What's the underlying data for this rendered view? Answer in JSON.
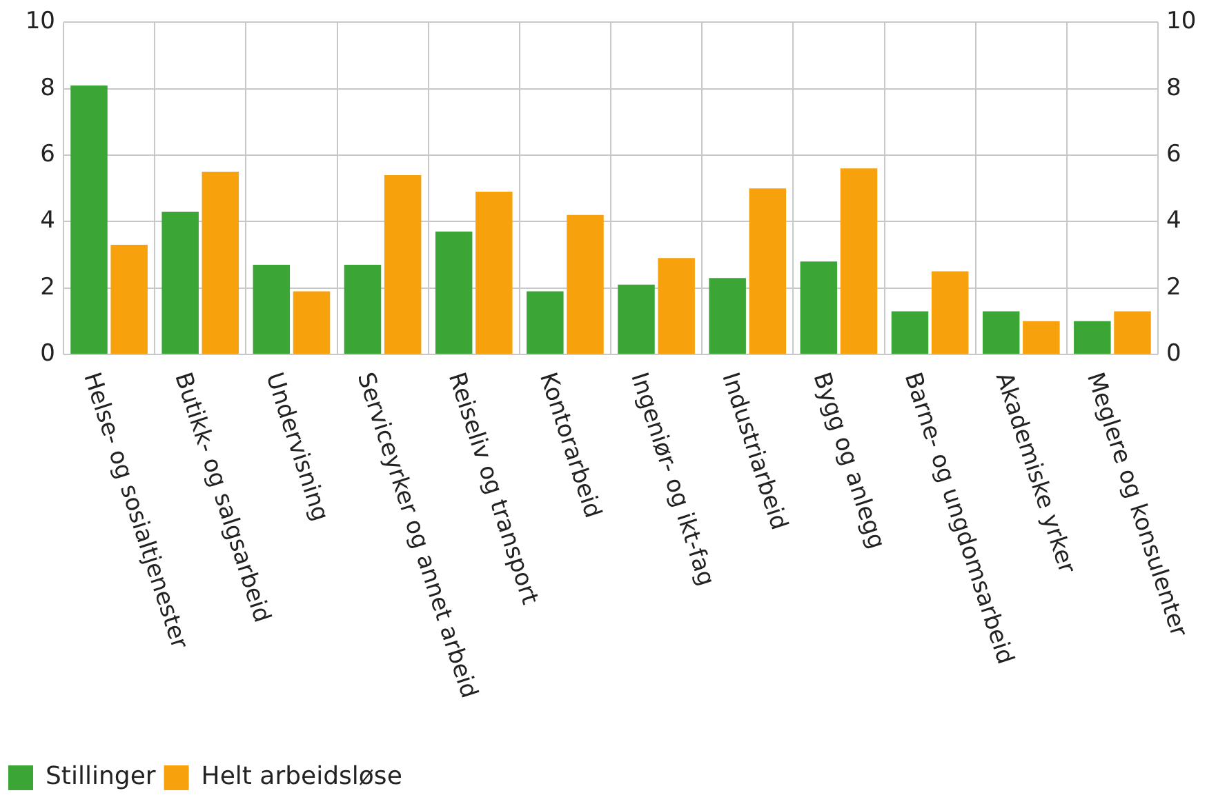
{
  "chart_data": {
    "type": "bar",
    "categories": [
      "Helse- og sosialtjenester",
      "Butikk- og salgsarbeid",
      "Undervisning",
      "Serviceyrker og annet arbeid",
      "Reiseliv og transport",
      "Kontorarbeid",
      "Ingeniør- og ikt-fag",
      "Industriarbeid",
      "Bygg og anlegg",
      "Barne- og ungdomsarbeid",
      "Akademiske yrker",
      "Meglere og konsulenter"
    ],
    "series": [
      {
        "name": "Stillinger",
        "color": "#3ba536",
        "values": [
          8.1,
          4.3,
          2.7,
          2.7,
          3.7,
          1.9,
          2.1,
          2.3,
          2.8,
          1.3,
          1.3,
          1.0
        ]
      },
      {
        "name": "Helt arbeidsløse",
        "color": "#f7a20c",
        "values": [
          3.3,
          5.5,
          1.9,
          5.4,
          4.9,
          4.2,
          2.9,
          5.0,
          5.6,
          2.5,
          1.0,
          1.3
        ]
      }
    ],
    "ylim": [
      0,
      10
    ],
    "yticks": [
      0,
      2,
      4,
      6,
      8,
      10
    ],
    "y2lim": [
      0,
      10
    ],
    "y2ticks": [
      0,
      2,
      4,
      6,
      8,
      10
    ],
    "grid": true,
    "legend": "bottom left"
  }
}
